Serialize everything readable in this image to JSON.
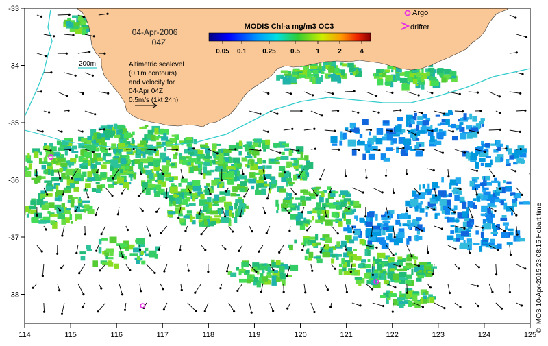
{
  "map": {
    "date_label": "04-Apr-2006",
    "time_label": "04Z",
    "colorbar_title": "MODIS Chl-a mg/m3 OC3",
    "colorbar_ticks": [
      "0.05",
      "0.1",
      "0.25",
      "0.5",
      "1",
      "2",
      "4"
    ],
    "contour_label": "200m",
    "info_lines": [
      "Altimetric sealevel",
      "(0.1m contours)",
      "and velocity for",
      "04-Apr 04Z",
      "0.5m/s (1kt 24h)"
    ],
    "legend": {
      "argo_label": "Argo",
      "drifter_label": "drifter"
    },
    "credit": "© IMOS 10-Apr-2015 23:08:15 Hobart time",
    "x_ticks": [
      "114",
      "115",
      "116",
      "117",
      "118",
      "119",
      "120",
      "121",
      "122",
      "123",
      "124",
      "125"
    ],
    "y_ticks": [
      "-33",
      "-34",
      "-35",
      "-36",
      "-37",
      "-38"
    ],
    "colors": {
      "land": "#fac896",
      "shelf_contour": "#33cccc",
      "argo": "#e62ee6",
      "arrow": "#000000"
    },
    "argo_floats": [
      {
        "lon": 114.57,
        "lat": -35.6
      },
      {
        "lon": 116.57,
        "lat": -38.2
      },
      {
        "lon": 121.65,
        "lat": -37.78
      }
    ],
    "velocity_reference": {
      "speed_ms": 0.5,
      "label": "0.5m/s (1kt 24h)"
    }
  }
}
